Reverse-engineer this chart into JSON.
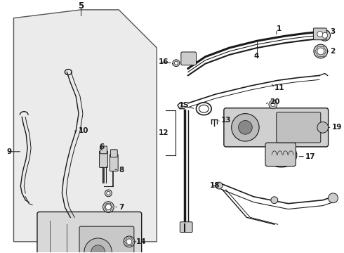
{
  "white": "#ffffff",
  "dark": "#1a1a1a",
  "light_gray": "#e6e6e6",
  "mid_gray": "#999999",
  "panel_fill": "#ebebeb",
  "fs": 7.5,
  "fs_big": 8.5
}
